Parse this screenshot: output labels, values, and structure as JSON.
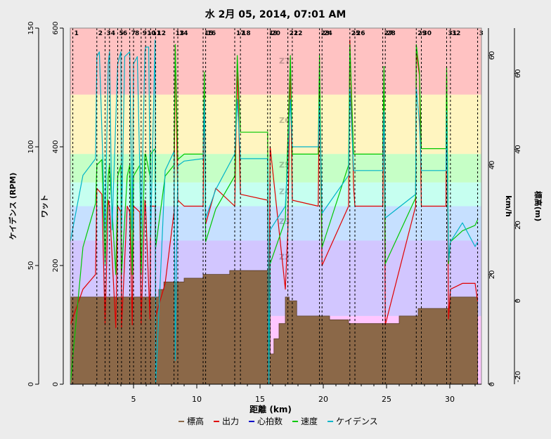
{
  "chart_data": {
    "type": "line",
    "title": "水 2月 05, 2014, 07:01 AM",
    "xlabel": "距離 (km)",
    "xlim": [
      0,
      32.5
    ],
    "x_ticks": [
      5,
      10,
      15,
      20,
      25,
      30
    ],
    "axes": [
      {
        "id": "cadence",
        "label": "ケイデンス (RPM)",
        "side": "left",
        "range": [
          0,
          150
        ],
        "ticks": [
          0,
          50,
          100,
          150
        ]
      },
      {
        "id": "power",
        "label": "ワット",
        "side": "left",
        "range": [
          0,
          600
        ],
        "ticks": [
          0,
          200,
          400,
          600
        ]
      },
      {
        "id": "speed",
        "label": "km/h",
        "side": "right",
        "range": [
          0,
          65
        ],
        "ticks": [
          0,
          20,
          40,
          60
        ]
      },
      {
        "id": "elevation",
        "label": "標高(m)",
        "side": "right",
        "range": [
          -22,
          72
        ],
        "ticks": [
          -20,
          0,
          20,
          40,
          60
        ]
      }
    ],
    "zones": [
      {
        "from": 0,
        "to": 115,
        "color": "#ffc6ff"
      },
      {
        "from": 115,
        "to": 242,
        "color": "#d2c6ff"
      },
      {
        "from": 242,
        "to": 300,
        "color": "#c6e0ff"
      },
      {
        "from": 300,
        "to": 340,
        "color": "#c6fff0"
      },
      {
        "from": 340,
        "to": 388,
        "color": "#c6ffc6"
      },
      {
        "from": 388,
        "to": 488,
        "color": "#fff5c0"
      },
      {
        "from": 488,
        "to": 600,
        "color": "#ffc2c2"
      }
    ],
    "zone_labels": [
      {
        "text": "Z7",
        "power": 540
      },
      {
        "text": "Z6",
        "power": 440
      },
      {
        "text": "Z5",
        "power": 365
      },
      {
        "text": "Z4",
        "power": 320
      },
      {
        "text": "Z3",
        "power": 270
      },
      {
        "text": "Z2",
        "power": 210
      },
      {
        "text": "Z1",
        "power": 90
      }
    ],
    "zone_label_x": 16.5,
    "intervals": [
      {
        "label": "1",
        "x": 0.2
      },
      {
        "label": "2",
        "x": 2.1
      },
      {
        "label": "3",
        "x": 2.75
      },
      {
        "label": "4",
        "x": 3.1
      },
      {
        "label": "5",
        "x": 3.75
      },
      {
        "label": "6",
        "x": 4.05
      },
      {
        "label": "7",
        "x": 4.7
      },
      {
        "label": "8",
        "x": 5.0
      },
      {
        "label": "9",
        "x": 5.6
      },
      {
        "label": "10",
        "x": 5.95
      },
      {
        "label": "11",
        "x": 6.35
      },
      {
        "label": "12",
        "x": 6.75
      },
      {
        "label": "13",
        "x": 8.2
      },
      {
        "label": "14",
        "x": 8.5
      },
      {
        "label": "15",
        "x": 10.5
      },
      {
        "label": "16",
        "x": 10.7
      },
      {
        "label": "17",
        "x": 13.0
      },
      {
        "label": "18",
        "x": 13.45
      },
      {
        "label": "19",
        "x": 15.6
      },
      {
        "label": "20",
        "x": 15.8
      },
      {
        "label": "21",
        "x": 17.2
      },
      {
        "label": "22",
        "x": 17.55
      },
      {
        "label": "23",
        "x": 19.7
      },
      {
        "label": "24",
        "x": 19.9
      },
      {
        "label": "25",
        "x": 22.1
      },
      {
        "label": "26",
        "x": 22.5
      },
      {
        "label": "27",
        "x": 24.7
      },
      {
        "label": "28",
        "x": 24.9
      },
      {
        "label": "29",
        "x": 27.35
      },
      {
        "label": "30",
        "x": 27.75
      },
      {
        "label": "31",
        "x": 29.75
      },
      {
        "label": "32",
        "x": 30.05
      },
      {
        "label": "3",
        "x": 32.2
      }
    ],
    "series": [
      {
        "name": "標高",
        "axis": "elevation",
        "color": "#8b6848",
        "style": "step-area",
        "x": [
          0,
          6.4,
          7.0,
          7.4,
          8.0,
          9.0,
          10.5,
          11.7,
          12.6,
          15.6,
          15.8,
          16.1,
          16.5,
          17.0,
          17.3,
          17.9,
          19.0,
          20.5,
          22.0,
          24.0,
          24.8,
          26.0,
          27.5,
          29.0,
          30.0,
          31.0,
          32.2
        ],
        "values": [
          1,
          1,
          3,
          5,
          5,
          6,
          7,
          7,
          8,
          8,
          -14,
          -10,
          -6,
          1,
          0,
          -4,
          -4,
          -5,
          -6,
          -6,
          -6,
          -4,
          -2,
          -2,
          1,
          1,
          1
        ]
      },
      {
        "name": "出力",
        "axis": "power",
        "color": "#e00000",
        "style": "line",
        "x": [
          0,
          1.0,
          2.0,
          2.1,
          2.5,
          2.75,
          3.0,
          3.1,
          3.6,
          3.75,
          4.0,
          4.05,
          4.5,
          4.7,
          4.9,
          5.0,
          5.5,
          5.6,
          5.9,
          5.95,
          6.3,
          6.35,
          6.7,
          6.75,
          7.5,
          8.2,
          8.3,
          8.5,
          9.0,
          10.5,
          10.6,
          10.7,
          11.5,
          13.0,
          13.2,
          13.45,
          15.6,
          15.7,
          15.8,
          17.0,
          17.2,
          17.4,
          17.55,
          19.6,
          19.7,
          19.9,
          22.0,
          22.1,
          22.4,
          22.5,
          24.7,
          24.8,
          24.9,
          27.3,
          27.35,
          27.6,
          27.75,
          29.7,
          29.75,
          29.9,
          30.05,
          31.0,
          32.0,
          32.2
        ],
        "values": [
          100,
          160,
          185,
          330,
          320,
          100,
          310,
          300,
          95,
          300,
          290,
          95,
          300,
          290,
          100,
          300,
          290,
          100,
          310,
          300,
          110,
          300,
          300,
          115,
          170,
          290,
          570,
          310,
          300,
          300,
          520,
          270,
          330,
          300,
          540,
          320,
          310,
          60,
          400,
          160,
          260,
          550,
          310,
          300,
          520,
          200,
          300,
          580,
          330,
          300,
          300,
          520,
          100,
          300,
          560,
          520,
          300,
          300,
          520,
          110,
          160,
          170,
          170,
          140
        ]
      },
      {
        "name": "心拍数",
        "axis": "power",
        "color": "#0000c8",
        "style": "line",
        "x": [
          0,
          0.2
        ],
        "values": [
          0,
          0
        ]
      },
      {
        "name": "速度",
        "axis": "speed",
        "color": "#00c800",
        "style": "line",
        "x": [
          0,
          1.0,
          2.0,
          2.1,
          2.5,
          2.75,
          3.0,
          3.1,
          3.6,
          3.75,
          4.0,
          4.05,
          4.5,
          4.7,
          4.9,
          5.0,
          5.5,
          5.6,
          5.9,
          5.95,
          6.3,
          6.35,
          6.7,
          6.75,
          7.5,
          8.2,
          8.3,
          8.5,
          9.0,
          10.5,
          10.6,
          10.7,
          11.5,
          13.0,
          13.2,
          13.45,
          15.6,
          15.7,
          15.8,
          17.0,
          17.2,
          17.4,
          17.55,
          19.6,
          19.7,
          19.9,
          22.0,
          22.1,
          22.4,
          22.5,
          24.7,
          24.8,
          24.9,
          27.3,
          27.35,
          27.6,
          27.75,
          29.7,
          29.75,
          29.9,
          30.05,
          31.0,
          32.0,
          32.2
        ],
        "values": [
          0,
          25,
          33,
          40,
          41,
          22,
          38,
          40,
          20,
          38,
          40,
          20,
          38,
          40,
          20,
          38,
          40,
          20,
          42,
          42,
          38,
          42,
          43,
          25,
          38,
          40,
          62,
          41,
          42,
          42,
          57,
          26,
          32,
          38,
          60,
          46,
          46,
          2,
          22,
          30,
          45,
          60,
          42,
          42,
          60,
          25,
          40,
          62,
          42,
          42,
          42,
          58,
          22,
          34,
          62,
          57,
          43,
          43,
          58,
          22,
          26,
          28,
          29,
          30
        ]
      },
      {
        "name": "ケイデンス",
        "axis": "cadence",
        "color": "#00b4c8",
        "style": "line",
        "x": [
          0,
          1.0,
          2.0,
          2.1,
          2.3,
          2.75,
          3.0,
          3.1,
          3.3,
          3.75,
          4.0,
          4.05,
          4.3,
          4.7,
          4.9,
          5.0,
          5.3,
          5.6,
          5.9,
          5.95,
          6.2,
          6.35,
          6.7,
          6.75,
          7.5,
          8.2,
          8.3,
          8.5,
          9.0,
          10.5,
          10.6,
          10.7,
          11.5,
          13.0,
          13.2,
          13.45,
          15.6,
          15.7,
          15.8,
          17.0,
          17.2,
          17.4,
          17.55,
          19.6,
          19.7,
          19.9,
          22.0,
          22.1,
          22.4,
          22.5,
          24.7,
          24.8,
          24.9,
          27.3,
          27.35,
          27.6,
          27.75,
          29.7,
          29.75,
          29.9,
          30.05,
          31.0,
          32.0,
          32.2
        ],
        "values": [
          60,
          88,
          95,
          138,
          140,
          65,
          135,
          140,
          65,
          135,
          140,
          65,
          138,
          140,
          65,
          135,
          138,
          65,
          140,
          142,
          142,
          62,
          145,
          0,
          90,
          98,
          10,
          92,
          94,
          95,
          120,
          70,
          82,
          97,
          120,
          95,
          95,
          0,
          65,
          75,
          95,
          120,
          100,
          100,
          120,
          72,
          88,
          125,
          90,
          90,
          90,
          115,
          70,
          80,
          125,
          110,
          90,
          90,
          115,
          52,
          60,
          68,
          58,
          60
        ]
      }
    ],
    "legend": [
      "標高",
      "出力",
      "心拍数",
      "速度",
      "ケイデンス"
    ],
    "legend_position": "bottom-center",
    "grid": false
  }
}
